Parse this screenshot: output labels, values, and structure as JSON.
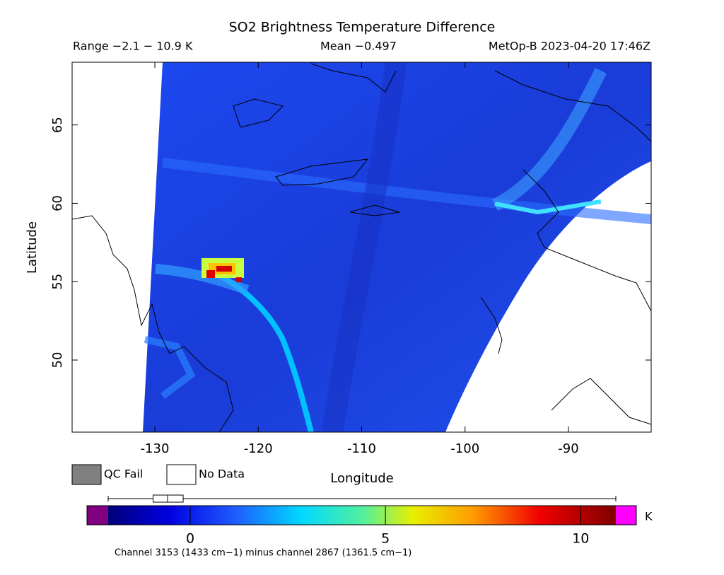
{
  "title": "SO2 Brightness Temperature Difference",
  "range_label": "Range −2.1 − 10.9 K",
  "mean_label": "Mean −0.497",
  "source_label": "MetOp-B 2023-04-20 17:46Z",
  "map": {
    "x_label": "Longitude",
    "y_label": "Latitude",
    "xlim": [
      -138,
      -82
    ],
    "ylim": [
      45.4,
      69
    ],
    "xticks": [
      -130,
      -120,
      -110,
      -100,
      -90
    ],
    "yticks": [
      50,
      55,
      60,
      65
    ]
  },
  "legend": [
    {
      "label": "QC Fail",
      "color": "#808080"
    },
    {
      "label": "No Data",
      "color": "#ffffff"
    }
  ],
  "colorbar": {
    "lim": [
      -2.1,
      10.9
    ],
    "ticks": [
      0,
      5,
      10
    ],
    "unit": "K",
    "under_color": "#800080",
    "over_color": "#ff00ff",
    "box": {
      "min": -2.1,
      "q1": -0.95,
      "median": -0.58,
      "q3": -0.18,
      "max": 10.9
    }
  },
  "footnote": "Channel 3153 (1433 cm−1) minus channel 2867 (1361.5 cm−1)"
}
